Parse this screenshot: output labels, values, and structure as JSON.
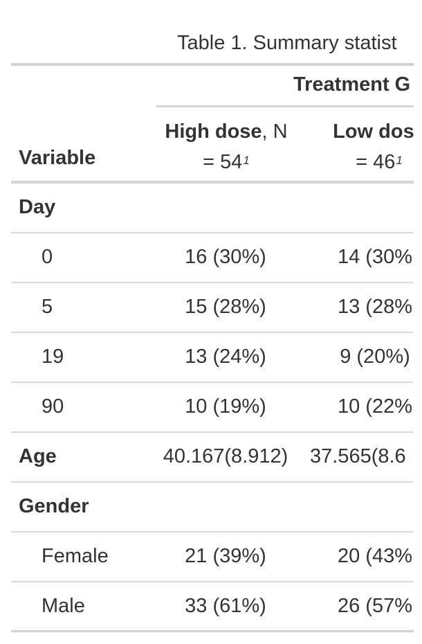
{
  "table": {
    "caption": "Table 1. Summary statist",
    "spanner": "Treatment G",
    "variable_header": "Variable",
    "columns": [
      {
        "name": "High dose",
        "n_text": ", N",
        "n_line": "= 54",
        "footnote_mark": "1"
      },
      {
        "name": "Low dose",
        "n_text": "",
        "n_line": "= 46",
        "footnote_mark": "1"
      }
    ],
    "rows": [
      {
        "label": "Day",
        "type": "group",
        "col1": "",
        "col2": ""
      },
      {
        "label": "0",
        "type": "level",
        "col1": "16 (30%)",
        "col2": "14 (30%"
      },
      {
        "label": "5",
        "type": "level",
        "col1": "15 (28%)",
        "col2": "13 (28%"
      },
      {
        "label": "19",
        "type": "level",
        "col1": "13 (24%)",
        "col2": "9 (20%)"
      },
      {
        "label": "90",
        "type": "level",
        "col1": "10 (19%)",
        "col2": "10 (22%"
      },
      {
        "label": "Age",
        "type": "group",
        "col1": "40.167(8.912)",
        "col2": "37.565(8.6"
      },
      {
        "label": "Gender",
        "type": "group",
        "col1": "",
        "col2": ""
      },
      {
        "label": "Female",
        "type": "level",
        "col1": "21 (39%)",
        "col2": "20 (43%"
      },
      {
        "label": "Male",
        "type": "level",
        "col1": "33 (61%)",
        "col2": "26 (57%"
      }
    ]
  }
}
